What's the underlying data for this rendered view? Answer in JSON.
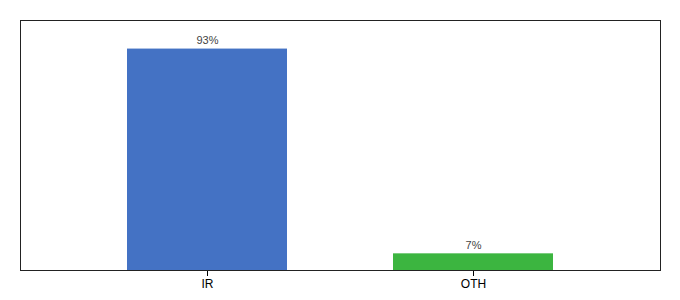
{
  "chart_data": {
    "type": "bar",
    "categories": [
      "IR",
      "OTH"
    ],
    "values": [
      93,
      7
    ],
    "value_labels": [
      "93%",
      "7%"
    ],
    "colors": [
      "#4472c4",
      "#3cb540"
    ],
    "ylim": [
      0,
      105
    ],
    "data_labels": true,
    "tick_labels": "x",
    "grid": false
  }
}
